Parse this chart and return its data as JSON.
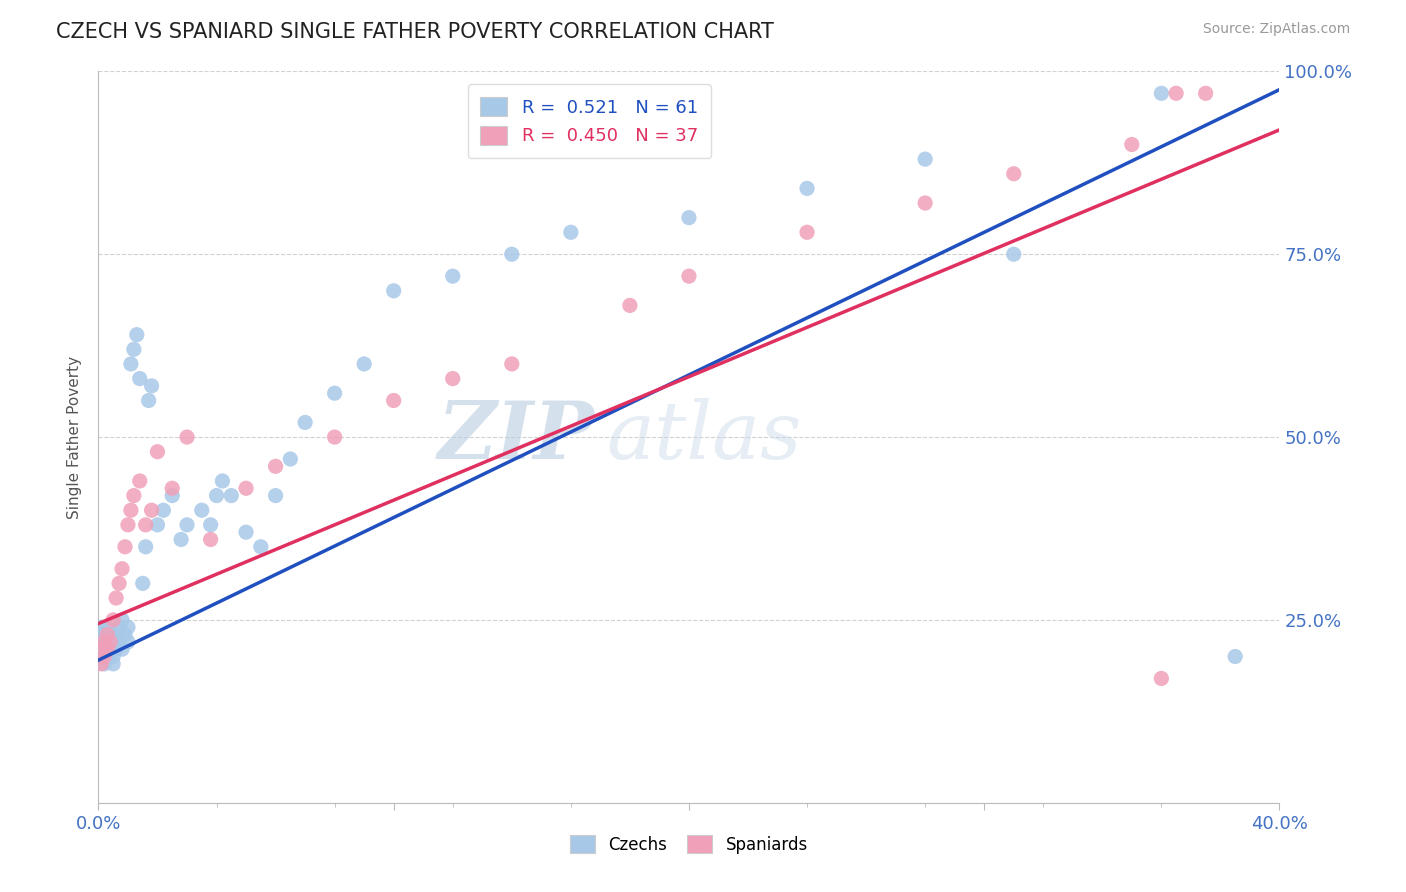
{
  "title": "CZECH VS SPANIARD SINGLE FATHER POVERTY CORRELATION CHART",
  "source": "Source: ZipAtlas.com",
  "ylabel": "Single Father Poverty",
  "xlim": [
    0.0,
    0.4
  ],
  "ylim": [
    0.0,
    1.0
  ],
  "czech_color": "#a8c8e8",
  "spanish_color": "#f0a0b8",
  "czech_line_color": "#2050c0",
  "spanish_line_color": "#e03060",
  "czech_R": 0.521,
  "czech_N": 61,
  "spanish_R": 0.45,
  "spanish_N": 37,
  "watermark_zip": "ZIP",
  "watermark_atlas": "atlas",
  "background_color": "#ffffff",
  "grid_color": "#cccccc",
  "czech_x": [
    0.001,
    0.001,
    0.001,
    0.001,
    0.001,
    0.002,
    0.002,
    0.002,
    0.002,
    0.003,
    0.003,
    0.003,
    0.004,
    0.004,
    0.005,
    0.005,
    0.005,
    0.006,
    0.006,
    0.007,
    0.007,
    0.008,
    0.008,
    0.009,
    0.01,
    0.01,
    0.011,
    0.012,
    0.013,
    0.014,
    0.015,
    0.016,
    0.017,
    0.018,
    0.02,
    0.022,
    0.025,
    0.028,
    0.03,
    0.035,
    0.038,
    0.04,
    0.042,
    0.045,
    0.05,
    0.055,
    0.06,
    0.065,
    0.07,
    0.08,
    0.09,
    0.1,
    0.12,
    0.14,
    0.16,
    0.2,
    0.24,
    0.28,
    0.31,
    0.36,
    0.385
  ],
  "czech_y": [
    0.2,
    0.21,
    0.22,
    0.23,
    0.24,
    0.19,
    0.21,
    0.22,
    0.23,
    0.2,
    0.22,
    0.24,
    0.21,
    0.23,
    0.19,
    0.2,
    0.22,
    0.21,
    0.23,
    0.22,
    0.24,
    0.21,
    0.25,
    0.23,
    0.22,
    0.24,
    0.6,
    0.62,
    0.64,
    0.58,
    0.3,
    0.35,
    0.55,
    0.57,
    0.38,
    0.4,
    0.42,
    0.36,
    0.38,
    0.4,
    0.38,
    0.42,
    0.44,
    0.42,
    0.37,
    0.35,
    0.42,
    0.47,
    0.52,
    0.56,
    0.6,
    0.7,
    0.72,
    0.75,
    0.78,
    0.8,
    0.84,
    0.88,
    0.75,
    0.97,
    0.2
  ],
  "spanish_x": [
    0.001,
    0.001,
    0.002,
    0.002,
    0.003,
    0.003,
    0.004,
    0.005,
    0.006,
    0.007,
    0.008,
    0.009,
    0.01,
    0.011,
    0.012,
    0.014,
    0.016,
    0.018,
    0.02,
    0.025,
    0.03,
    0.038,
    0.05,
    0.06,
    0.08,
    0.1,
    0.12,
    0.14,
    0.18,
    0.2,
    0.24,
    0.28,
    0.31,
    0.35,
    0.36,
    0.365,
    0.375
  ],
  "spanish_y": [
    0.19,
    0.21,
    0.2,
    0.22,
    0.21,
    0.23,
    0.22,
    0.25,
    0.28,
    0.3,
    0.32,
    0.35,
    0.38,
    0.4,
    0.42,
    0.44,
    0.38,
    0.4,
    0.48,
    0.43,
    0.5,
    0.36,
    0.43,
    0.46,
    0.5,
    0.55,
    0.58,
    0.6,
    0.68,
    0.72,
    0.78,
    0.82,
    0.86,
    0.9,
    0.17,
    0.97,
    0.97
  ],
  "czech_line_x0": 0.0,
  "czech_line_y0": 0.195,
  "czech_line_x1": 0.4,
  "czech_line_y1": 0.975,
  "spanish_line_x0": 0.0,
  "spanish_line_y0": 0.245,
  "spanish_line_x1": 0.4,
  "spanish_line_y1": 0.92
}
